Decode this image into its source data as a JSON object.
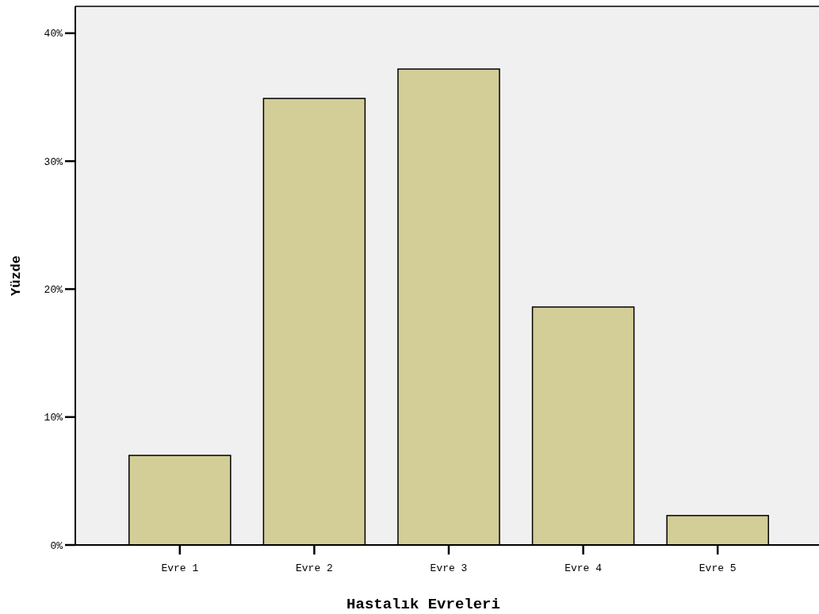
{
  "chart_data": {
    "type": "bar",
    "xlabel": "Hastalık Evreleri",
    "ylabel": "Yüzde",
    "categories": [
      "Evre 1",
      "Evre 2",
      "Evre 3",
      "Evre 4",
      "Evre 5"
    ],
    "values": [
      7.0,
      34.9,
      37.2,
      18.6,
      2.3
    ],
    "color": "#d3cd98",
    "ylim": [
      0,
      42.1
    ],
    "yticks": [
      {
        "value": 0,
        "label": "0%"
      },
      {
        "value": 10,
        "label": "10%"
      },
      {
        "value": 20,
        "label": "20%"
      },
      {
        "value": 30,
        "label": "30%"
      },
      {
        "value": 40,
        "label": "40%"
      }
    ],
    "grid": false
  }
}
